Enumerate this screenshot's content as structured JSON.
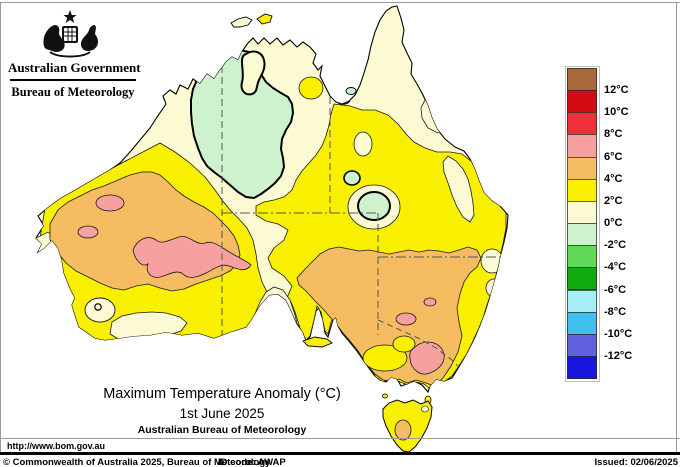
{
  "header": {
    "government": "Australian Government",
    "bureau": "Bureau of Meteorology"
  },
  "title": {
    "main": "Maximum Temperature Anomaly (°C)",
    "date": "1st June 2025",
    "org": "Australian Bureau of Meteorology"
  },
  "legend": {
    "unit": "°C",
    "colors": [
      "#A86A3C",
      "#D40B14",
      "#EF3038",
      "#F6A0A0",
      "#F5BC62",
      "#F9F000",
      "#FBFAD2",
      "#CEF2CE",
      "#5FD957",
      "#0FAC0F",
      "#A8EEF6",
      "#40C0EE",
      "#6161DE",
      "#1717DF"
    ],
    "labels": [
      "12°C",
      "10°C",
      "8°C",
      "6°C",
      "4°C",
      "2°C",
      "0°C",
      "-2°C",
      "-4°C",
      "-6°C",
      "-8°C",
      "-10°C",
      "-12°C"
    ]
  },
  "map_palette": {
    "above_6": "#F6A0A0",
    "4_to_6": "#F5BC62",
    "2_to_4": "#F9F000",
    "0_to_2": "#FBFAD2",
    "neg2_to_0": "#CEF2CE",
    "coastline": "#000000",
    "state_border": "#555555"
  },
  "footer": {
    "url": "http://www.bom.gov.au",
    "copyright": "© Commonwealth of Australia 2025, Bureau of Meteorology",
    "id_code": "ID code: AWAP",
    "issued": "Issued: 02/06/2025"
  }
}
